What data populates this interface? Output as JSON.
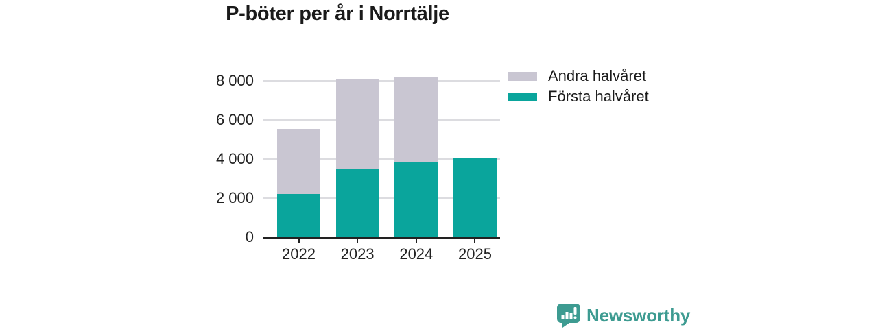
{
  "chart_data": {
    "type": "bar",
    "stacked": true,
    "title": "P-böter per år i Norrtälje",
    "categories": [
      "2022",
      "2023",
      "2024",
      "2025"
    ],
    "series": [
      {
        "name": "Första halvåret",
        "color": "#0aa59c",
        "values": [
          2200,
          3520,
          3860,
          4045
        ]
      },
      {
        "name": "Andra halvåret",
        "color": "#c9c6d2",
        "values": [
          3340,
          4580,
          4320,
          0
        ]
      }
    ],
    "xlabel": "",
    "ylabel": "",
    "ylim": [
      0,
      8000
    ],
    "yticks": [
      0,
      2000,
      4000,
      6000,
      8000
    ],
    "ytick_labels": [
      "0",
      "2 000",
      "4 000",
      "6 000",
      "8 000"
    ],
    "grid": true,
    "gridline_color": "#dcdce0",
    "axis_color": "#222222",
    "legend_position": "right",
    "legend_order": [
      "Andra halvåret",
      "Första halvåret"
    ]
  },
  "branding": {
    "name": "Newsworthy",
    "color": "#3d9b91",
    "icon": "newsworthy-logo-icon"
  }
}
